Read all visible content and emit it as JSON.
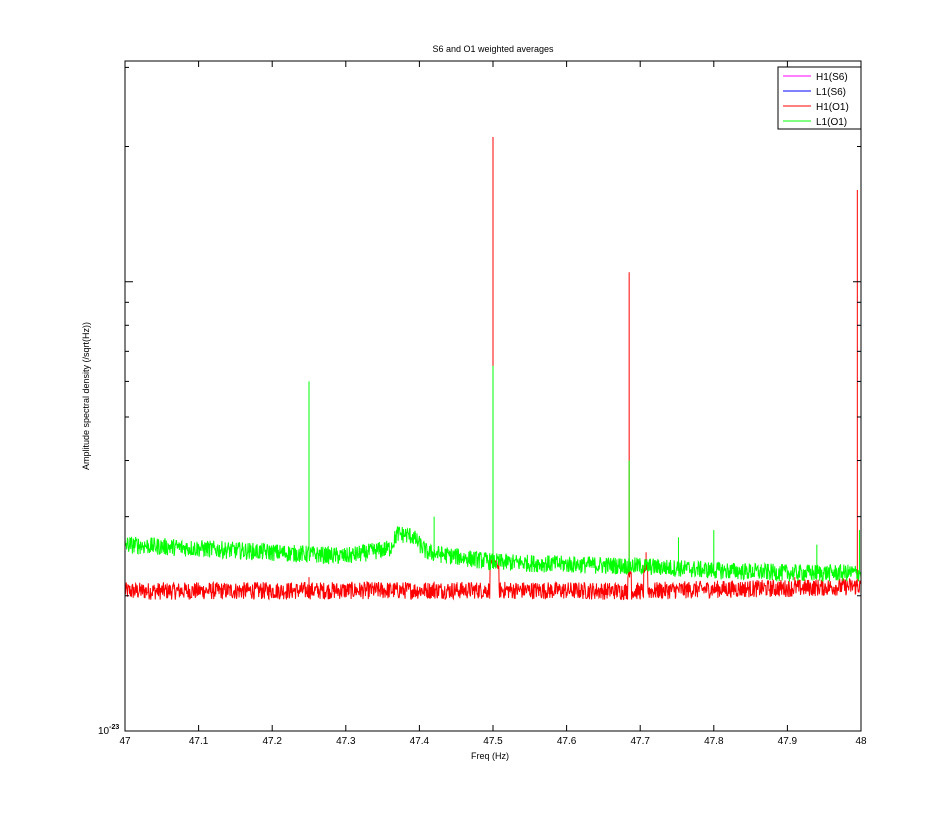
{
  "chart_data": {
    "type": "line",
    "title": "S6 and O1 weighted averages",
    "xlabel": "Freq (Hz)",
    "ylabel": "Amplitude spectral density (/sqrt(Hz))",
    "xlim": [
      47,
      48
    ],
    "x_ticks": [
      "47",
      "47.1",
      "47.2",
      "47.3",
      "47.4",
      "47.5",
      "47.6",
      "47.7",
      "47.8",
      "47.9",
      "48"
    ],
    "y_scale": "log",
    "ylim": [
      1e-23,
      3.1e-22
    ],
    "y_tick_label_base": "10",
    "y_tick_label_exp": "-23",
    "grid": false,
    "legend_position": "top-right",
    "series": [
      {
        "name": "H1(S6)",
        "color": "#ff00ff",
        "visible_trace": false,
        "baseline": [],
        "spikes": []
      },
      {
        "name": "L1(S6)",
        "color": "#0000ff",
        "visible_trace": false,
        "baseline": [],
        "spikes": []
      },
      {
        "name": "H1(O1)",
        "color": "#ff0000",
        "baseline": [
          [
            47.0,
            2.05e-23
          ],
          [
            47.5,
            2.06e-23
          ],
          [
            47.7,
            2.05e-23
          ],
          [
            47.8,
            2.07e-23
          ],
          [
            47.9,
            2.08e-23
          ],
          [
            48.0,
            2.1e-23
          ]
        ],
        "spikes": [
          [
            47.25,
            2.2e-23
          ],
          [
            47.42,
            2.15e-23
          ],
          [
            47.5,
            2.1e-22
          ],
          [
            47.685,
            1.05e-22
          ],
          [
            47.708,
            2.5e-23
          ],
          [
            47.91,
            2.2e-23
          ],
          [
            47.995,
            1.6e-22
          ]
        ],
        "bumps": [
          [
            47.496,
            47.508,
            2.35e-23
          ],
          [
            47.683,
            47.688,
            2.25e-23
          ],
          [
            47.705,
            47.71,
            2.3e-23
          ]
        ]
      },
      {
        "name": "L1(O1)",
        "color": "#00ff00",
        "baseline": [
          [
            47.0,
            2.6e-23
          ],
          [
            47.1,
            2.55e-23
          ],
          [
            47.2,
            2.5e-23
          ],
          [
            47.3,
            2.45e-23
          ],
          [
            47.36,
            2.55e-23
          ],
          [
            47.37,
            2.75e-23
          ],
          [
            47.39,
            2.72e-23
          ],
          [
            47.41,
            2.5e-23
          ],
          [
            47.5,
            2.38e-23
          ],
          [
            47.6,
            2.35e-23
          ],
          [
            47.7,
            2.33e-23
          ],
          [
            47.8,
            2.28e-23
          ],
          [
            47.9,
            2.25e-23
          ],
          [
            48.0,
            2.25e-23
          ]
        ],
        "spikes": [
          [
            47.25,
            6e-23
          ],
          [
            47.42,
            3e-23
          ],
          [
            47.5,
            6.5e-23
          ],
          [
            47.685,
            4e-23
          ],
          [
            47.752,
            2.7e-23
          ],
          [
            47.8,
            2.8e-23
          ],
          [
            47.94,
            2.6e-23
          ],
          [
            47.998,
            2.8e-23
          ]
        ]
      }
    ]
  }
}
